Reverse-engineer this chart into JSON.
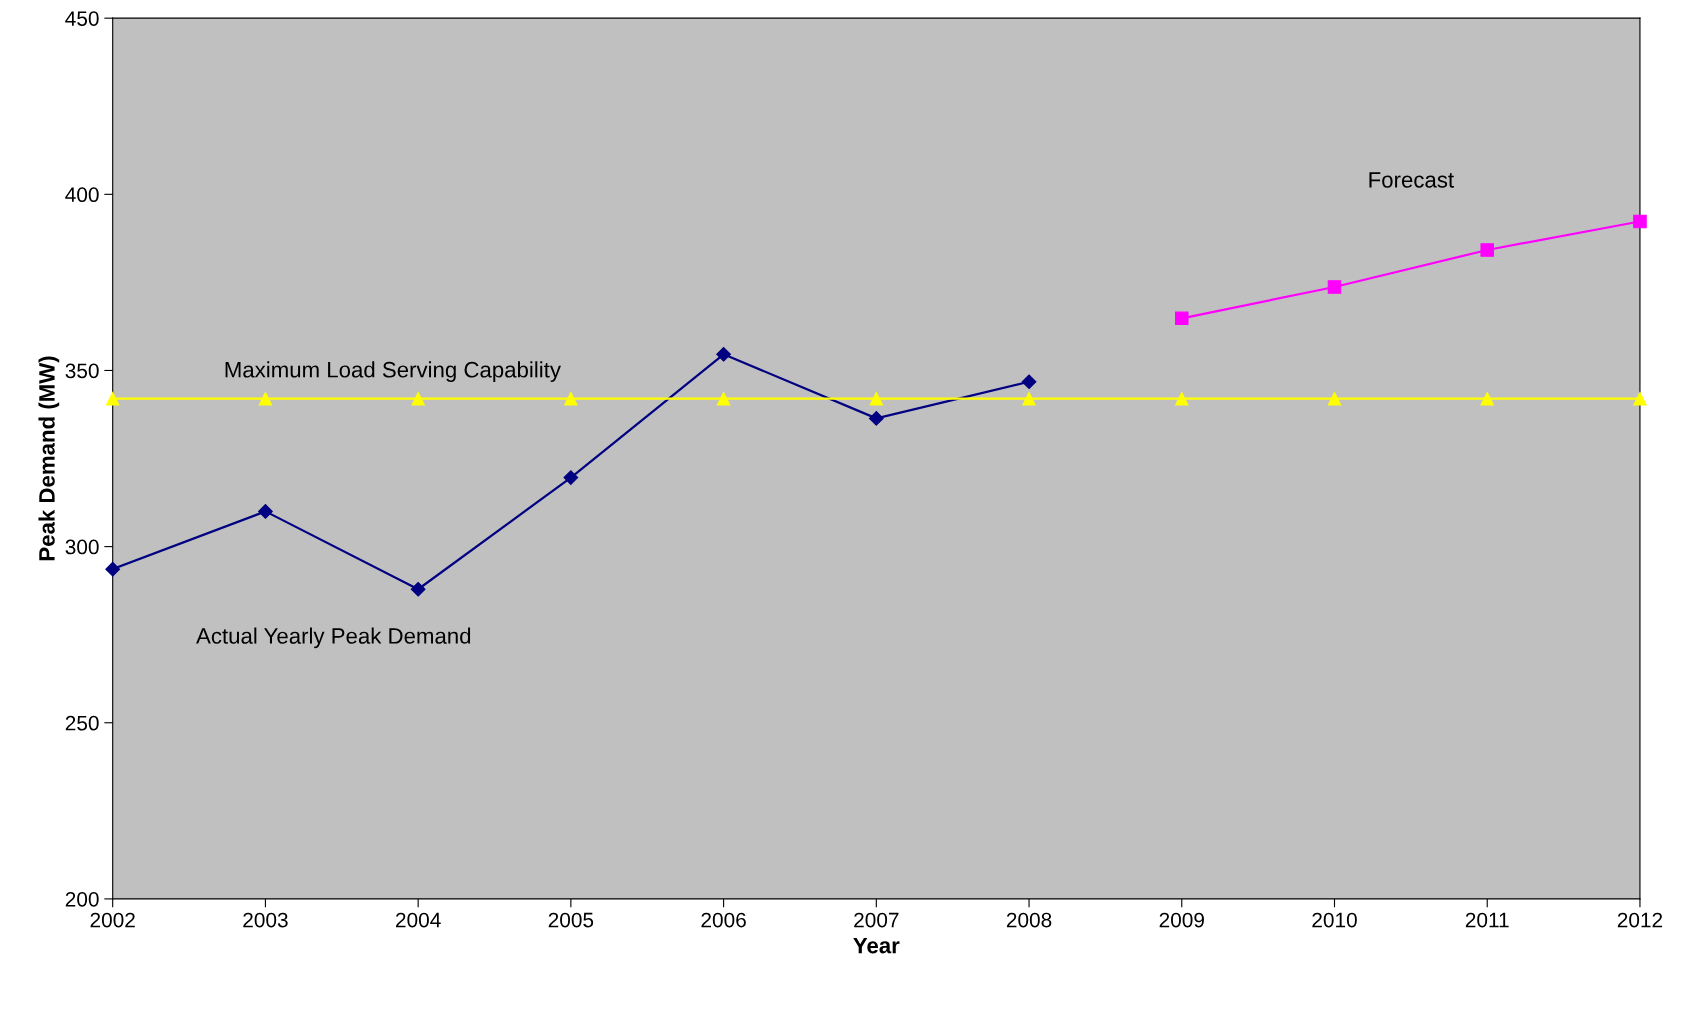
{
  "chart_data": {
    "type": "line",
    "xlabel": "Year",
    "ylabel": "Peak Demand (MW)",
    "xlim": [
      2002,
      2012
    ],
    "xticks": [
      2002,
      2003,
      2004,
      2005,
      2006,
      2007,
      2008,
      2009,
      2010,
      2011,
      2012
    ],
    "ylim": [
      200,
      450
    ],
    "yticks": [
      200,
      250,
      300,
      350,
      400,
      450
    ],
    "grid": false,
    "legend": false,
    "series": [
      {
        "name": "Actual Yearly Peak Demand",
        "color": "#000080",
        "marker": "diamond",
        "x": [
          2002,
          2003,
          2004,
          2005,
          2006,
          2007,
          2008
        ],
        "values": [
          293.6,
          310.0,
          287.9,
          319.6,
          354.6,
          336.4,
          346.8
        ]
      },
      {
        "name": "Maximum Load Serving Capability",
        "color": "#ffff00",
        "marker": "triangle",
        "x": [
          2002,
          2003,
          2004,
          2005,
          2006,
          2007,
          2008,
          2009,
          2010,
          2011,
          2012
        ],
        "values": [
          342,
          342,
          342,
          342,
          342,
          342,
          342,
          342,
          342,
          342,
          342
        ]
      },
      {
        "name": "Forecast",
        "color": "#ff00ff",
        "marker": "square",
        "x": [
          2009,
          2010,
          2011,
          2012
        ],
        "values": [
          364.8,
          373.7,
          384.2,
          392.3
        ]
      }
    ]
  }
}
